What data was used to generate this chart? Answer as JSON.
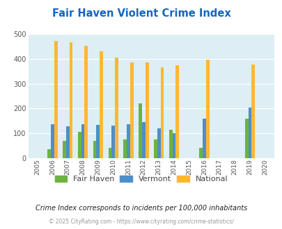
{
  "title": "Fair Haven Violent Crime Index",
  "years": [
    "2005",
    "2006",
    "2007",
    "2008",
    "2009",
    "2010",
    "2011",
    "2012",
    "2013",
    "2014",
    "2015",
    "2016",
    "2017",
    "2018",
    "2019",
    "2020"
  ],
  "fair_haven": [
    0,
    37,
    70,
    105,
    70,
    40,
    75,
    220,
    75,
    115,
    0,
    42,
    0,
    0,
    160,
    0
  ],
  "vermont": [
    0,
    138,
    128,
    138,
    135,
    130,
    138,
    145,
    120,
    100,
    0,
    160,
    0,
    0,
    205,
    0
  ],
  "national": [
    0,
    472,
    468,
    455,
    432,
    405,
    387,
    387,
    367,
    376,
    0,
    397,
    0,
    0,
    379,
    0
  ],
  "fair_haven_color": "#6db33f",
  "vermont_color": "#4d8fc7",
  "national_color": "#ffb733",
  "plot_bg": "#ddeef5",
  "ylim": [
    0,
    500
  ],
  "yticks": [
    0,
    100,
    200,
    300,
    400,
    500
  ],
  "subtitle": "Crime Index corresponds to incidents per 100,000 inhabitants",
  "footer": "© 2025 CityRating.com - https://www.cityrating.com/crime-statistics/",
  "legend_labels": [
    "Fair Haven",
    "Vermont",
    "National"
  ],
  "bar_width": 0.22
}
